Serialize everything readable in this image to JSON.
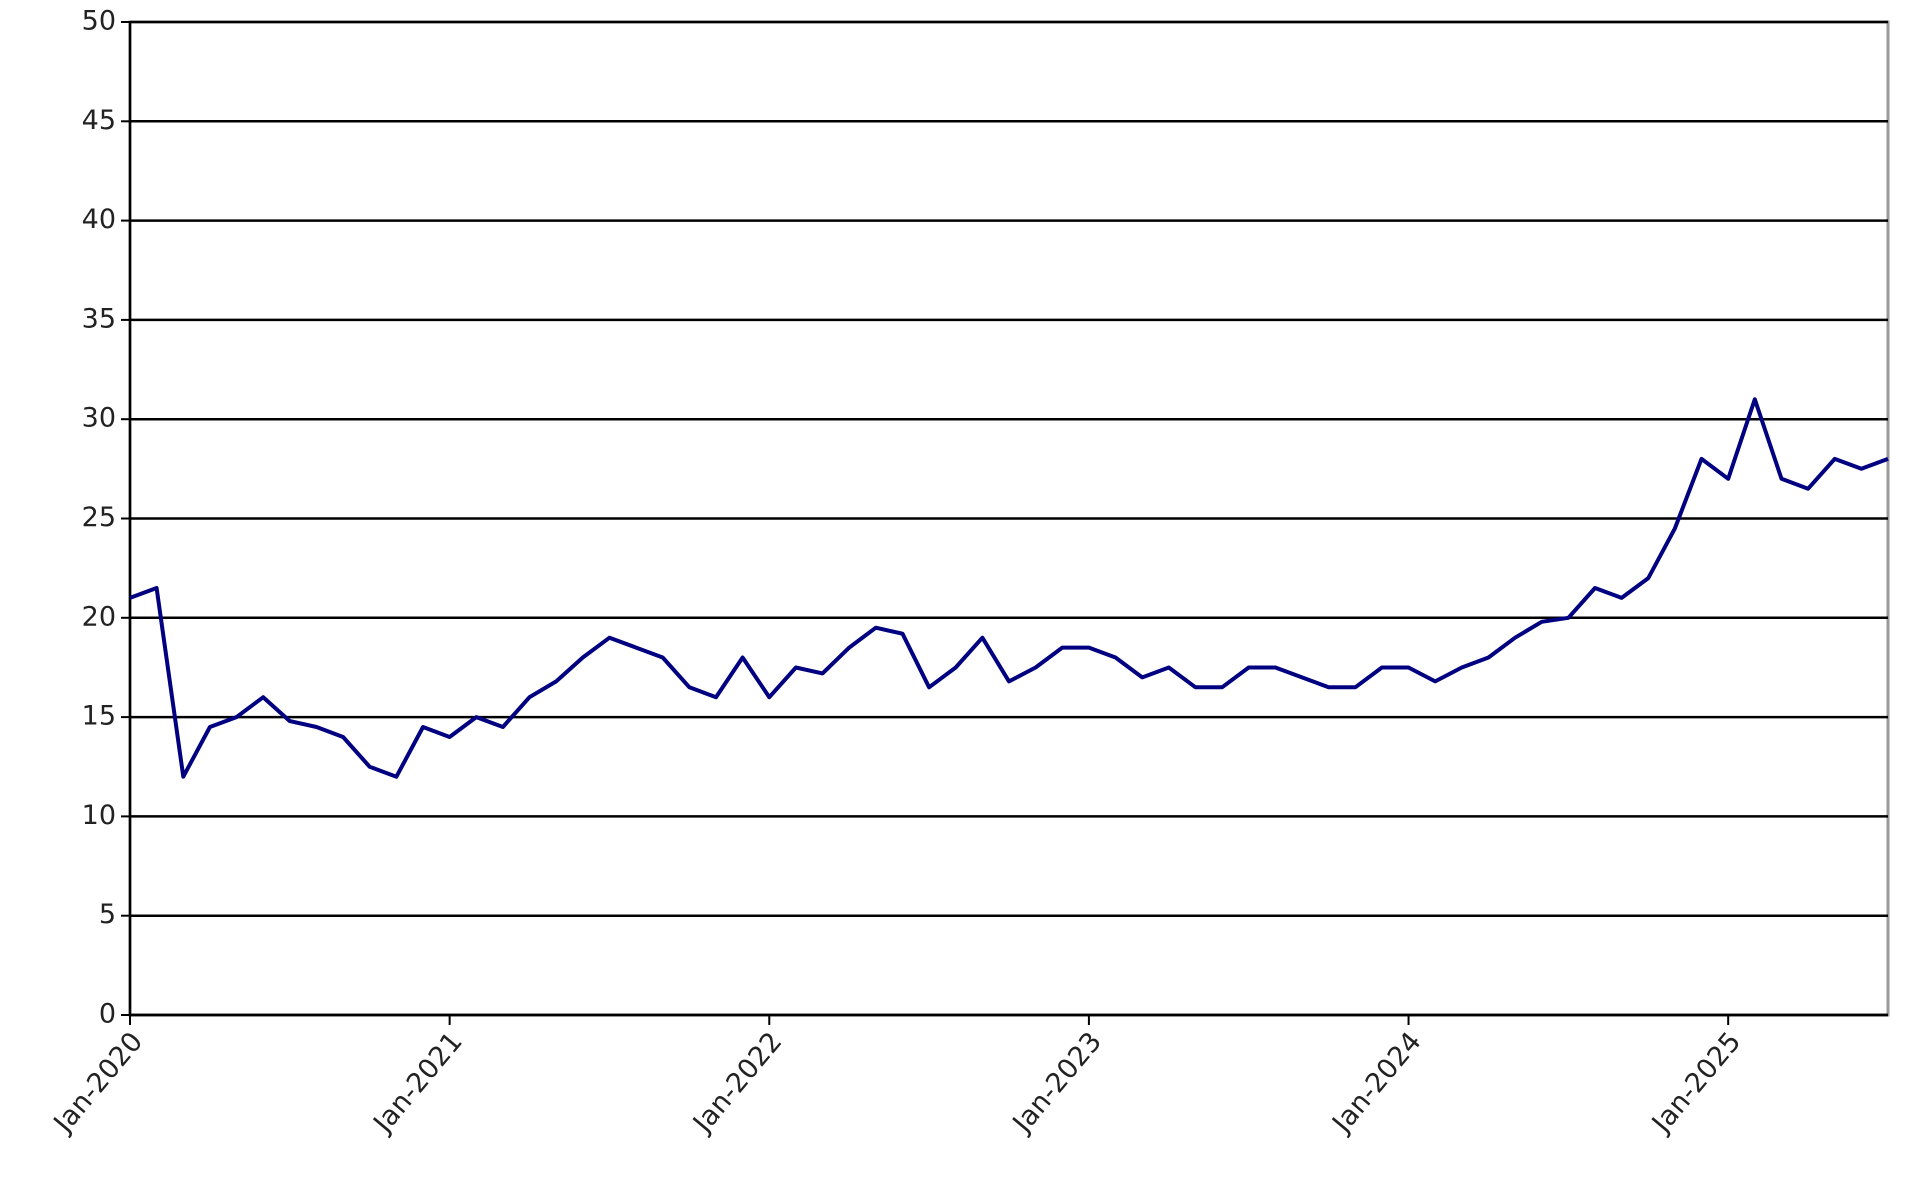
{
  "chart_data": {
    "type": "line",
    "x": [
      "2020-01",
      "2020-02",
      "2020-03",
      "2020-04",
      "2020-05",
      "2020-06",
      "2020-07",
      "2020-08",
      "2020-09",
      "2020-10",
      "2020-11",
      "2020-12",
      "2021-01",
      "2021-02",
      "2021-03",
      "2021-04",
      "2021-05",
      "2021-06",
      "2021-07",
      "2021-08",
      "2021-09",
      "2021-10",
      "2021-11",
      "2021-12",
      "2022-01",
      "2022-02",
      "2022-03",
      "2022-04",
      "2022-05",
      "2022-06",
      "2022-07",
      "2022-08",
      "2022-09",
      "2022-10",
      "2022-11",
      "2022-12",
      "2023-01",
      "2023-02",
      "2023-03",
      "2023-04",
      "2023-05",
      "2023-06",
      "2023-07",
      "2023-08",
      "2023-09",
      "2023-10",
      "2023-11",
      "2023-12",
      "2024-01",
      "2024-02",
      "2024-03",
      "2024-04",
      "2024-05",
      "2024-06",
      "2024-07",
      "2024-08",
      "2024-09",
      "2024-10",
      "2024-11",
      "2024-12",
      "2025-01",
      "2025-02",
      "2025-03",
      "2025-04",
      "2025-05",
      "2025-06",
      "2025-07"
    ],
    "series": [
      {
        "color": "#000080",
        "values": [
          21,
          21.5,
          12,
          14.5,
          15,
          16,
          14.8,
          14.5,
          14,
          12.5,
          12,
          14.5,
          14,
          15,
          14.5,
          16,
          16.8,
          18,
          19,
          18.5,
          18,
          16.5,
          16,
          18,
          16,
          17.5,
          17.2,
          18.5,
          19.5,
          19.2,
          16.5,
          17.5,
          19,
          16.8,
          17.5,
          18.5,
          18.5,
          18,
          17,
          17.5,
          16.5,
          16.5,
          17.5,
          17.5,
          17,
          16.5,
          16.5,
          17.5,
          17.5,
          16.8,
          17.5,
          18,
          19,
          19.8,
          20,
          21.5,
          21,
          22,
          24.5,
          28,
          27,
          31,
          27,
          26.5,
          28,
          27.5,
          28
        ]
      }
    ],
    "xlim": [
      "2020-01",
      "2025-07"
    ],
    "xticks": [
      {
        "value": "2020-01",
        "label": "Jan-2020"
      },
      {
        "value": "2021-01",
        "label": "Jan-2021"
      },
      {
        "value": "2022-01",
        "label": "Jan-2022"
      },
      {
        "value": "2023-01",
        "label": "Jan-2023"
      },
      {
        "value": "2024-01",
        "label": "Jan-2024"
      },
      {
        "value": "2025-01",
        "label": "Jan-2025"
      }
    ],
    "ylim": [
      0,
      50
    ],
    "yticks": [
      0,
      5,
      10,
      15,
      20,
      25,
      30,
      35,
      40,
      45,
      50
    ],
    "grid": true
  }
}
